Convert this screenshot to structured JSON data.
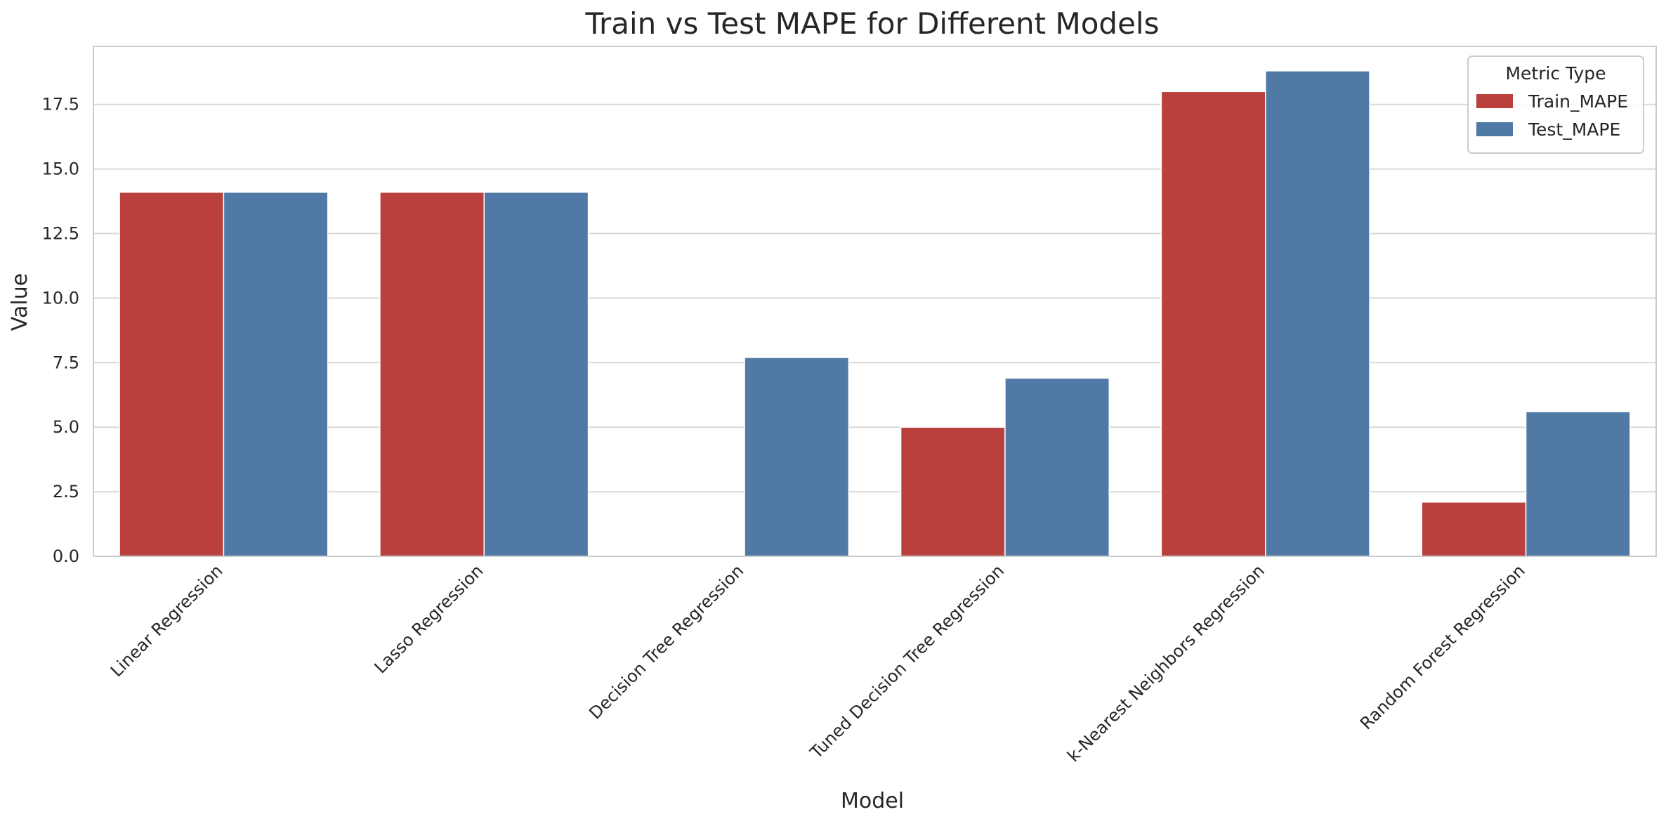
{
  "chart_data": {
    "type": "bar",
    "title": "Train vs Test MAPE for Different Models",
    "xlabel": "Model",
    "ylabel": "Value",
    "categories": [
      "Linear Regression",
      "Lasso Regression",
      "Decision Tree Regression",
      "Tuned Decision Tree Regression",
      "k-Nearest Neighbors Regression",
      "Random Forest Regression"
    ],
    "series": [
      {
        "name": "Train_MAPE",
        "color": "#b9403d",
        "values": [
          14.1,
          14.1,
          0.0,
          5.0,
          18.0,
          2.1
        ]
      },
      {
        "name": "Test_MAPE",
        "color": "#5079a5",
        "values": [
          14.1,
          14.1,
          7.7,
          6.9,
          18.8,
          5.6
        ]
      }
    ],
    "ylim": [
      0,
      19.75
    ],
    "yticks": [
      0.0,
      2.5,
      5.0,
      7.5,
      10.0,
      12.5,
      15.0,
      17.5
    ],
    "ytick_labels": [
      "0.0",
      "2.5",
      "5.0",
      "7.5",
      "10.0",
      "12.5",
      "15.0",
      "17.5"
    ],
    "grid": "horizontal",
    "legend": {
      "title": "Metric Type",
      "position": "top-right"
    }
  }
}
